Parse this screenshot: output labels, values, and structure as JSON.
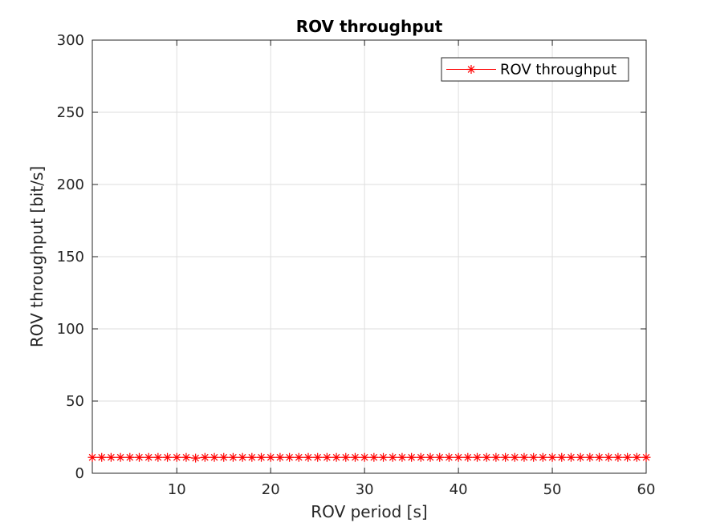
{
  "chart_data": {
    "type": "line",
    "title": "ROV throughput",
    "xlabel": "ROV period [s]",
    "ylabel": "ROV throughput [bit/s]",
    "xlim": [
      1,
      60
    ],
    "ylim": [
      0,
      300
    ],
    "xticks": [
      10,
      20,
      30,
      40,
      50,
      60
    ],
    "yticks": [
      0,
      50,
      100,
      150,
      200,
      250,
      300
    ],
    "grid": true,
    "legend_position": "top-right",
    "series": [
      {
        "name": "ROV throughput",
        "color": "#ff0000",
        "marker": "asterisk",
        "x": [
          1,
          2,
          3,
          4,
          5,
          6,
          7,
          8,
          9,
          10,
          11,
          12,
          13,
          14,
          15,
          16,
          17,
          18,
          19,
          20,
          21,
          22,
          23,
          24,
          25,
          26,
          27,
          28,
          29,
          30,
          31,
          32,
          33,
          34,
          35,
          36,
          37,
          38,
          39,
          40,
          41,
          42,
          43,
          44,
          45,
          46,
          47,
          48,
          49,
          50,
          51,
          52,
          53,
          54,
          55,
          56,
          57,
          58,
          59,
          60
        ],
        "values": [
          11,
          11,
          11,
          11,
          11,
          11,
          11,
          11,
          11,
          11,
          11,
          10.5,
          11,
          11,
          11,
          11,
          11,
          11,
          11,
          11,
          11,
          11,
          11,
          11,
          11,
          11,
          11,
          11,
          11,
          11,
          11,
          11,
          11,
          11,
          11,
          11,
          11,
          11,
          11,
          11,
          11,
          11,
          11,
          11,
          11,
          11,
          11,
          11,
          11,
          11,
          11,
          11,
          11,
          11,
          11,
          11,
          11,
          11,
          11,
          11
        ]
      }
    ]
  }
}
